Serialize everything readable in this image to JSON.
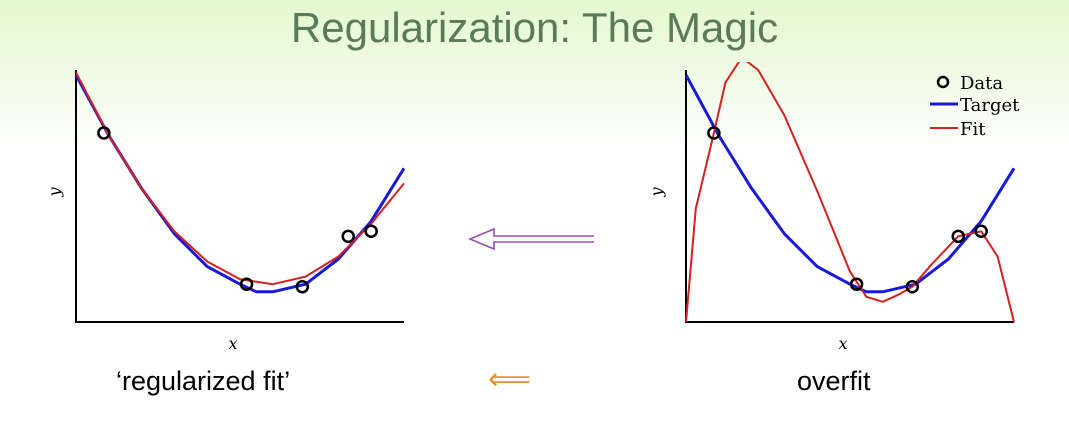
{
  "slide": {
    "title": "Regularization: The Magic",
    "left_caption": "‘regularized fit’",
    "right_caption": "overfit",
    "double_arrow": "⟸"
  },
  "colors": {
    "title": "#5a7a5a",
    "target": "#1a1ad6",
    "fit": "#d42020",
    "data": "#000000",
    "arrow_purple": "#9a4fb0",
    "arrow_orange": "#e8922e"
  },
  "chart_data": [
    {
      "type": "line",
      "name": "regularized",
      "xlabel": "x",
      "ylabel": "y",
      "xlim": [
        0,
        1
      ],
      "ylim": [
        0,
        1
      ],
      "data_points": [
        [
          0.085,
          0.75
        ],
        [
          0.52,
          0.15
        ],
        [
          0.69,
          0.14
        ],
        [
          0.83,
          0.34
        ],
        [
          0.9,
          0.36
        ]
      ],
      "target": [
        [
          0.0,
          0.98
        ],
        [
          0.1,
          0.74
        ],
        [
          0.2,
          0.53
        ],
        [
          0.3,
          0.35
        ],
        [
          0.4,
          0.22
        ],
        [
          0.5,
          0.15
        ],
        [
          0.55,
          0.12
        ],
        [
          0.6,
          0.12
        ],
        [
          0.7,
          0.15
        ],
        [
          0.8,
          0.25
        ],
        [
          0.9,
          0.4
        ],
        [
          1.0,
          0.61
        ]
      ],
      "fit": [
        [
          0.0,
          0.99
        ],
        [
          0.1,
          0.74
        ],
        [
          0.2,
          0.53
        ],
        [
          0.3,
          0.36
        ],
        [
          0.4,
          0.24
        ],
        [
          0.5,
          0.17
        ],
        [
          0.6,
          0.15
        ],
        [
          0.7,
          0.18
        ],
        [
          0.8,
          0.26
        ],
        [
          0.9,
          0.39
        ],
        [
          1.0,
          0.55
        ]
      ]
    },
    {
      "type": "line",
      "name": "overfit",
      "xlabel": "x",
      "ylabel": "y",
      "xlim": [
        0,
        1
      ],
      "ylim": [
        0,
        1
      ],
      "legend": {
        "position": "top-right",
        "entries": [
          "Data",
          "Target",
          "Fit"
        ]
      },
      "data_points": [
        [
          0.085,
          0.75
        ],
        [
          0.52,
          0.15
        ],
        [
          0.69,
          0.14
        ],
        [
          0.83,
          0.34
        ],
        [
          0.9,
          0.36
        ]
      ],
      "target": [
        [
          0.0,
          0.98
        ],
        [
          0.1,
          0.74
        ],
        [
          0.2,
          0.53
        ],
        [
          0.3,
          0.35
        ],
        [
          0.4,
          0.22
        ],
        [
          0.5,
          0.15
        ],
        [
          0.55,
          0.12
        ],
        [
          0.6,
          0.12
        ],
        [
          0.7,
          0.15
        ],
        [
          0.8,
          0.25
        ],
        [
          0.9,
          0.4
        ],
        [
          1.0,
          0.61
        ]
      ],
      "fit": [
        [
          0.0,
          0.0
        ],
        [
          0.03,
          0.45
        ],
        [
          0.085,
          0.75
        ],
        [
          0.12,
          0.95
        ],
        [
          0.17,
          1.05
        ],
        [
          0.22,
          1.0
        ],
        [
          0.3,
          0.82
        ],
        [
          0.4,
          0.52
        ],
        [
          0.5,
          0.2
        ],
        [
          0.55,
          0.1
        ],
        [
          0.6,
          0.08
        ],
        [
          0.65,
          0.11
        ],
        [
          0.69,
          0.14
        ],
        [
          0.75,
          0.23
        ],
        [
          0.83,
          0.34
        ],
        [
          0.9,
          0.36
        ],
        [
          0.95,
          0.26
        ],
        [
          1.0,
          0.0
        ]
      ]
    }
  ]
}
